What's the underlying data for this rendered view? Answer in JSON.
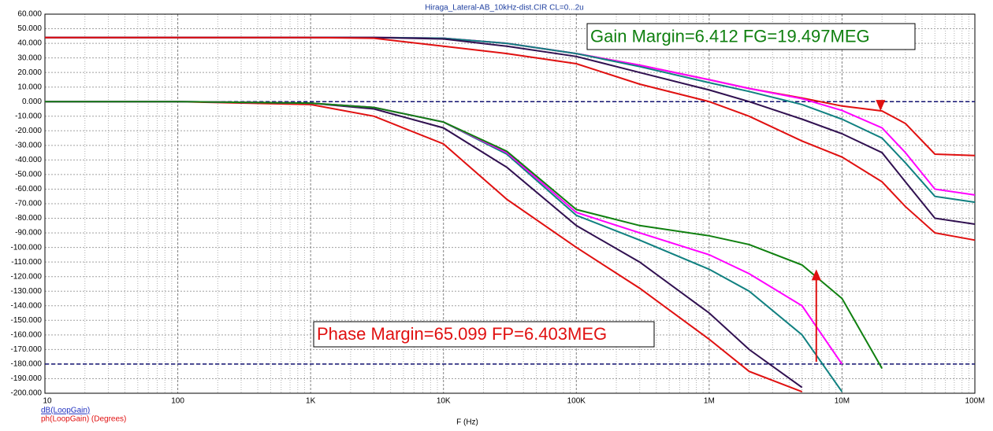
{
  "chart_data": {
    "type": "line",
    "title": "Hiraga_Lateral-AB_10kHz-dist.CIR CL=0...2u",
    "xlabel": "F (Hz)",
    "ylabel": "dB(LoopGain)",
    "ylabel2": "ph(LoopGain) (Degrees)",
    "log_x": true,
    "grid": true,
    "xlim": [
      10,
      100000000
    ],
    "ylim": [
      -200,
      60
    ],
    "xticks": [
      10,
      100,
      {
        "value": 1000,
        "label": "1K"
      },
      {
        "value": 10000,
        "label": "10K"
      },
      {
        "value": 100000,
        "label": "100K"
      },
      {
        "value": 1000000,
        "label": "1M"
      },
      {
        "value": 10000000,
        "label": "10M"
      },
      {
        "value": 100000000,
        "label": "100M"
      }
    ],
    "yticks": [
      {
        "value": 60,
        "label": "60.000"
      },
      {
        "value": 50,
        "label": "50.000"
      },
      {
        "value": 40,
        "label": "40.000"
      },
      {
        "value": 30,
        "label": "30.000"
      },
      {
        "value": 20,
        "label": "20.000"
      },
      {
        "value": 10,
        "label": "10.000"
      },
      {
        "value": 0,
        "label": "0.000"
      },
      {
        "value": -10,
        "label": "-10.000"
      },
      {
        "value": -20,
        "label": "-20.000"
      },
      {
        "value": -30,
        "label": "-30.000"
      },
      {
        "value": -40,
        "label": "-40.000"
      },
      {
        "value": -50,
        "label": "-50.000"
      },
      {
        "value": -60,
        "label": "-60.000"
      },
      {
        "value": -70,
        "label": "-70.000"
      },
      {
        "value": -80,
        "label": "-80.000"
      },
      {
        "value": -90,
        "label": "-90.000"
      },
      {
        "value": -100,
        "label": "-100.000"
      },
      {
        "value": -110,
        "label": "-110.000"
      },
      {
        "value": -120,
        "label": "-120.000"
      },
      {
        "value": -130,
        "label": "-130.000"
      },
      {
        "value": -140,
        "label": "-140.000"
      },
      {
        "value": -150,
        "label": "-150.000"
      },
      {
        "value": -160,
        "label": "-160.000"
      },
      {
        "value": -170,
        "label": "-170.000"
      },
      {
        "value": -180,
        "label": "-180.000"
      },
      {
        "value": -190,
        "label": "-190.000"
      },
      {
        "value": -200,
        "label": "-200.000"
      }
    ],
    "hlines": [
      0,
      -180
    ],
    "annotations": [
      "Gain Margin=6.412 FG=19.497MEG",
      "Phase Margin=65.099 FP=6.403MEG"
    ],
    "markers": [
      {
        "x": 19497000,
        "y": -6.4,
        "color": "#e01010",
        "dir": "down"
      },
      {
        "x": 6403000,
        "y": -115,
        "color": "#e01010",
        "dir": "up"
      }
    ],
    "x": [
      10,
      100,
      1000,
      3000,
      10000,
      30000,
      100000,
      300000,
      1000000,
      2000000,
      5000000,
      10000000,
      20000000,
      30000000,
      50000000,
      100000000
    ],
    "series": [
      {
        "color": "#e01010",
        "values": [
          44,
          44,
          44,
          44,
          43.5,
          40,
          33,
          25,
          15,
          9,
          2.5,
          -3,
          -6.4,
          -15,
          -36,
          -37
        ]
      },
      {
        "color": "#ff00ff",
        "values": [
          44,
          44,
          44,
          44,
          43.5,
          40,
          33,
          25,
          15,
          9,
          2,
          -6,
          -18,
          -35,
          -60,
          -64
        ]
      },
      {
        "color": "#108080",
        "values": [
          44,
          44,
          44,
          44,
          43.5,
          40,
          33,
          24,
          13,
          7,
          -2,
          -12,
          -25,
          -42,
          -65,
          -69
        ]
      },
      {
        "color": "#301050",
        "values": [
          44,
          44,
          44,
          44,
          43,
          38,
          31,
          20,
          8,
          0,
          -12,
          -22,
          -35,
          -55,
          -80,
          -84
        ]
      },
      {
        "color": "#e01010",
        "values": [
          44,
          44,
          44,
          43.5,
          38,
          33,
          26,
          12,
          0,
          -10,
          -27,
          -38,
          -55,
          -72,
          -90,
          -95
        ]
      },
      {
        "color": "#e01010",
        "values": [
          0,
          0,
          -2,
          -10,
          -29,
          -67,
          -100,
          -128,
          -163,
          -185,
          -199,
          null,
          null,
          null,
          null,
          null
        ]
      },
      {
        "color": "#301050",
        "values": [
          0,
          0,
          -1,
          -5,
          -18,
          -45,
          -85,
          -110,
          -145,
          -170,
          -196,
          null,
          null,
          null,
          null,
          null
        ]
      },
      {
        "color": "#108080",
        "values": [
          0,
          0,
          -1,
          -4,
          -14,
          -36,
          -78,
          -95,
          -115,
          -130,
          -160,
          -199,
          null,
          null,
          null,
          null
        ]
      },
      {
        "color": "#ff00ff",
        "values": [
          0,
          0,
          -1,
          -4,
          -14,
          -35,
          -76,
          -90,
          -105,
          -118,
          -140,
          -180,
          null,
          null,
          null,
          null
        ]
      },
      {
        "color": "#108010",
        "values": [
          0,
          0,
          -1,
          -4,
          -14,
          -34,
          -74,
          -85,
          -92,
          -98,
          -112,
          -135,
          -183,
          null,
          null,
          null
        ]
      }
    ]
  }
}
